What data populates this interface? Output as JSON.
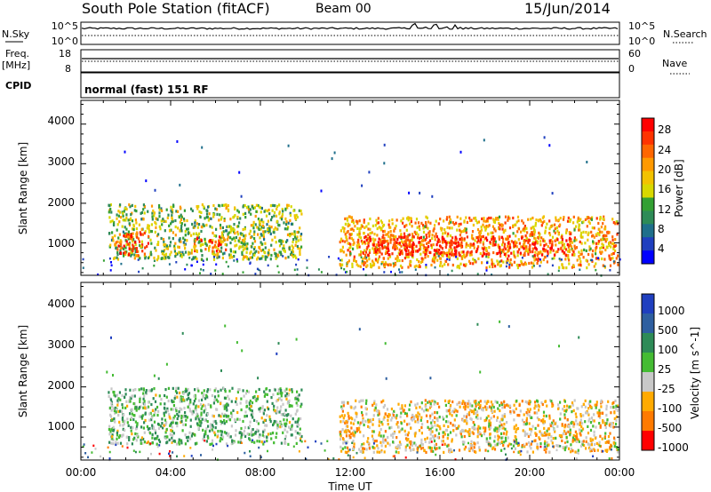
{
  "header": {
    "station": "South Pole Station (fitACF)",
    "beam": "Beam 00",
    "date": "15/Jun/2014"
  },
  "sky_panel": {
    "left_label": "N.Sky",
    "right_label": "N.Search",
    "left_ticks": [
      "10^5",
      "10^0"
    ],
    "right_ticks": [
      "10^5",
      "10^0"
    ]
  },
  "freq_panel": {
    "left_label_1": "Freq.",
    "left_label_2": "[MHz]",
    "right_label": "Nave",
    "left_ticks": [
      "18",
      "8"
    ],
    "right_ticks": [
      "60",
      "0"
    ]
  },
  "cpid_panel": {
    "label": "CPID",
    "text": "normal (fast) 151 RF"
  },
  "power_colorbar": {
    "label": "Power [dB]",
    "ticks": [
      "28",
      "24",
      "20",
      "16",
      "12",
      "8",
      "4"
    ],
    "colors": [
      "#ff0000",
      "#ff3300",
      "#ff6600",
      "#ff9900",
      "#f2c200",
      "#d8d800",
      "#33a033",
      "#2e8b57",
      "#1f6f8b",
      "#1f3fbf",
      "#0000ff"
    ]
  },
  "velocity_colorbar": {
    "label": "Velocity [m s^-1]",
    "ticks": [
      "1000",
      "500",
      "100",
      "25",
      "-25",
      "-100",
      "-500",
      "-1000"
    ],
    "colors": [
      "#1f3fbf",
      "#2e5fa0",
      "#2e8b57",
      "#44bb33",
      "#c8c8c8",
      "#ffaa00",
      "#ff7a00",
      "#ff0000"
    ]
  },
  "x_axis": {
    "label": "Time UT",
    "ticks": [
      "00:00",
      "04:00",
      "08:00",
      "12:00",
      "16:00",
      "20:00",
      "00:00"
    ]
  },
  "y_axis": {
    "label": "Slant Range [km]",
    "ticks": [
      "4000",
      "3000",
      "2000",
      "1000"
    ]
  },
  "chart_data": [
    {
      "type": "heatmap",
      "title": "Power",
      "ylabel": "Slant Range [km]",
      "xlabel": "Time UT",
      "x_range_hours": [
        0,
        24
      ],
      "ylim": [
        180,
        4600
      ],
      "colorbar_range": [
        0,
        30
      ],
      "scatter_bands_approx": [
        {
          "x_hours": [
            1.2,
            9.8
          ],
          "range_km": [
            600,
            2000
          ],
          "dominant_dB": 14
        },
        {
          "x_hours": [
            1.5,
            3.0
          ],
          "range_km": [
            700,
            1300
          ],
          "dominant_dB": 26
        },
        {
          "x_hours": [
            5.0,
            6.5
          ],
          "range_km": [
            800,
            1200
          ],
          "dominant_dB": 24
        },
        {
          "x_hours": [
            11.5,
            23.9
          ],
          "range_km": [
            400,
            1700
          ],
          "dominant_dB": 20
        },
        {
          "x_hours": [
            12.5,
            22.0
          ],
          "range_km": [
            700,
            1200
          ],
          "dominant_dB": 28
        }
      ]
    },
    {
      "type": "heatmap",
      "title": "Velocity",
      "ylabel": "Slant Range [km]",
      "xlabel": "Time UT",
      "x_range_hours": [
        0,
        24
      ],
      "ylim": [
        180,
        4600
      ],
      "colorbar_range": [
        -1000,
        1000
      ],
      "scatter_bands_approx": [
        {
          "x_hours": [
            1.2,
            9.8
          ],
          "range_km": [
            600,
            2000
          ],
          "dominant_m_s": 100
        },
        {
          "x_hours": [
            11.5,
            23.9
          ],
          "range_km": [
            400,
            1700
          ],
          "dominant_m_s": -300
        }
      ]
    }
  ]
}
